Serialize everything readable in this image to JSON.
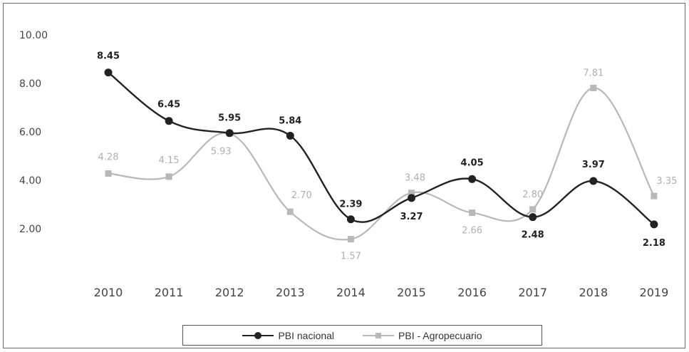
{
  "chart_data": {
    "type": "line",
    "title": "",
    "xlabel": "",
    "ylabel": "",
    "categories": [
      "2010",
      "2011",
      "2012",
      "2013",
      "2014",
      "2015",
      "2016",
      "2017",
      "2018",
      "2019"
    ],
    "ylim": [
      0,
      10
    ],
    "yticks": [
      "2.00",
      "4.00",
      "6.00",
      "8.00",
      "10.00"
    ],
    "series": [
      {
        "name": "PBI nacional",
        "color": "#222222",
        "marker": "circle",
        "values": [
          8.45,
          6.45,
          5.95,
          5.84,
          2.39,
          3.27,
          4.05,
          2.48,
          3.97,
          2.18
        ],
        "labels": [
          "8.45",
          "6.45",
          "5.95",
          "5.84",
          "2.39",
          "3.27",
          "4.05",
          "2.48",
          "3.97",
          "2.18"
        ]
      },
      {
        "name": "PBI - Agropecuario",
        "color": "#b8b8b8",
        "marker": "square",
        "values": [
          4.28,
          4.15,
          5.93,
          2.7,
          1.57,
          3.48,
          2.66,
          2.8,
          7.81,
          3.35
        ],
        "labels": [
          "4.28",
          "4.15",
          "5.93",
          "2.70",
          "1.57",
          "3.48",
          "2.66",
          "2.80",
          "7.81",
          "3.35"
        ]
      }
    ],
    "legend": {
      "position": "bottom",
      "items": [
        "PBI nacional",
        "PBI - Agropecuario"
      ]
    }
  }
}
